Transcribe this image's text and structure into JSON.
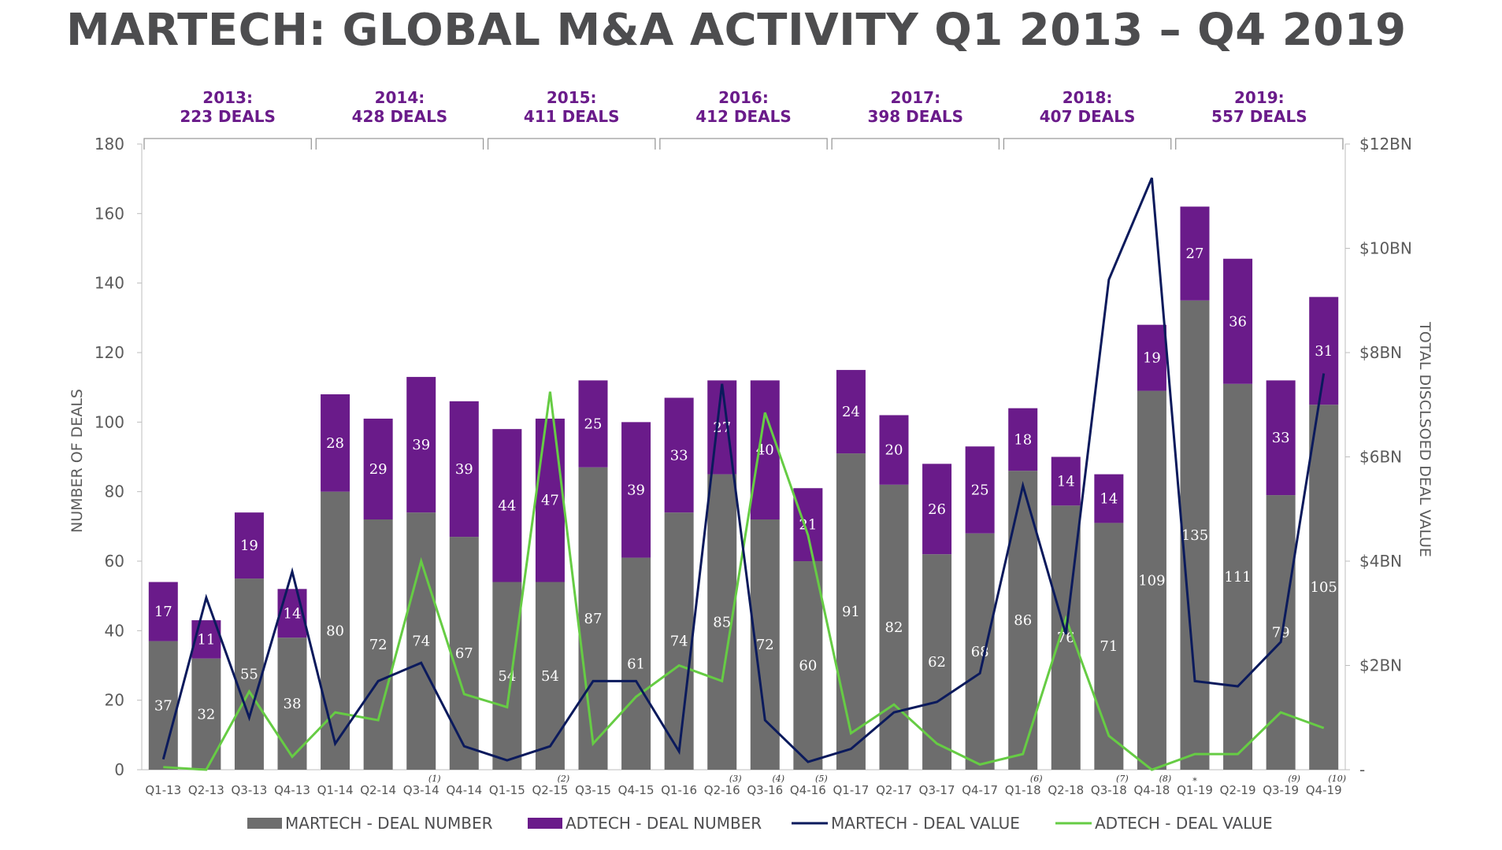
{
  "title": "MARTECH: GLOBAL M&A ACTIVITY Q1 2013 – Q4 2019",
  "colors": {
    "martech_bar": "#6d6d6d",
    "adtech_bar": "#6a1b8a",
    "martech_line": "#0b1a5c",
    "adtech_line": "#66cc44",
    "year_label": "#6a1b8a"
  },
  "chart_data": {
    "type": "bar",
    "stacked": true,
    "categories": [
      "Q1-13",
      "Q2-13",
      "Q3-13",
      "Q4-13",
      "Q1-14",
      "Q2-14",
      "Q3-14",
      "Q4-14",
      "Q1-15",
      "Q2-15",
      "Q3-15",
      "Q4-15",
      "Q1-16",
      "Q2-16",
      "Q3-16",
      "Q4-16",
      "Q1-17",
      "Q2-17",
      "Q3-17",
      "Q4-17",
      "Q1-18",
      "Q2-18",
      "Q3-18",
      "Q4-18",
      "Q1-19",
      "Q2-19",
      "Q3-19",
      "Q4-19"
    ],
    "category_notes": [
      "",
      "",
      "",
      "",
      "",
      "",
      "(1)",
      "",
      "",
      "(2)",
      "",
      "",
      "",
      "(3)",
      "(4)",
      "(5)",
      "",
      "",
      "",
      "",
      "(6)",
      "",
      "(7)",
      "(8)",
      "*",
      "",
      "(9)",
      "(10)"
    ],
    "year_groups": [
      {
        "year": "2013:",
        "deals": "223 DEALS"
      },
      {
        "year": "2014:",
        "deals": "428 DEALS"
      },
      {
        "year": "2015:",
        "deals": "411 DEALS"
      },
      {
        "year": "2016:",
        "deals": "412 DEALS"
      },
      {
        "year": "2017:",
        "deals": "398 DEALS"
      },
      {
        "year": "2018:",
        "deals": "407 DEALS"
      },
      {
        "year": "2019:",
        "deals": "557 DEALS"
      }
    ],
    "series": [
      {
        "name": "MARTECH - DEAL NUMBER",
        "kind": "bar",
        "axis": "left",
        "values": [
          37,
          32,
          55,
          38,
          80,
          72,
          74,
          67,
          54,
          54,
          87,
          61,
          74,
          85,
          72,
          60,
          91,
          82,
          62,
          68,
          86,
          76,
          71,
          109,
          135,
          111,
          79,
          105
        ]
      },
      {
        "name": "ADTECH - DEAL NUMBER",
        "kind": "bar",
        "axis": "left",
        "values": [
          17,
          11,
          19,
          14,
          28,
          29,
          39,
          39,
          44,
          47,
          25,
          39,
          33,
          27,
          40,
          21,
          24,
          20,
          26,
          25,
          18,
          14,
          14,
          19,
          27,
          36,
          33,
          31
        ]
      },
      {
        "name": "MARTECH - DEAL VALUE",
        "kind": "line",
        "axis": "right",
        "unit": "BN",
        "values": [
          0.2,
          3.3,
          1.0,
          3.8,
          0.5,
          1.7,
          2.05,
          0.45,
          0.18,
          0.45,
          1.7,
          1.7,
          0.35,
          7.4,
          0.95,
          0.15,
          0.4,
          1.1,
          1.3,
          1.85,
          5.45,
          2.6,
          9.4,
          11.35,
          1.7,
          1.6,
          2.45,
          7.6
        ]
      },
      {
        "name": "ADTECH - DEAL VALUE",
        "kind": "line",
        "axis": "right",
        "unit": "BN",
        "values": [
          0.05,
          0.0,
          1.5,
          0.25,
          1.1,
          0.95,
          4.0,
          1.45,
          1.2,
          7.25,
          0.5,
          1.4,
          2.0,
          1.7,
          6.85,
          4.5,
          0.7,
          1.25,
          0.5,
          0.1,
          0.3,
          2.9,
          0.65,
          0.0,
          0.3,
          0.3,
          1.1,
          0.8
        ]
      }
    ],
    "ylabel": "NUMBER OF DEALS",
    "y2label": "TOTAL DISCLSOED DEAL VALUE",
    "ylim": [
      0,
      180
    ],
    "yticks": [
      0,
      20,
      40,
      60,
      80,
      100,
      120,
      140,
      160,
      180
    ],
    "y2lim": [
      0,
      12
    ],
    "y2ticks": [
      {
        "v": 0,
        "label": "-"
      },
      {
        "v": 2,
        "label": "$2BN"
      },
      {
        "v": 4,
        "label": "$4BN"
      },
      {
        "v": 6,
        "label": "$6BN"
      },
      {
        "v": 8,
        "label": "$8BN"
      },
      {
        "v": 10,
        "label": "$10BN"
      },
      {
        "v": 12,
        "label": "$12BN"
      }
    ],
    "legend_position": "bottom"
  }
}
